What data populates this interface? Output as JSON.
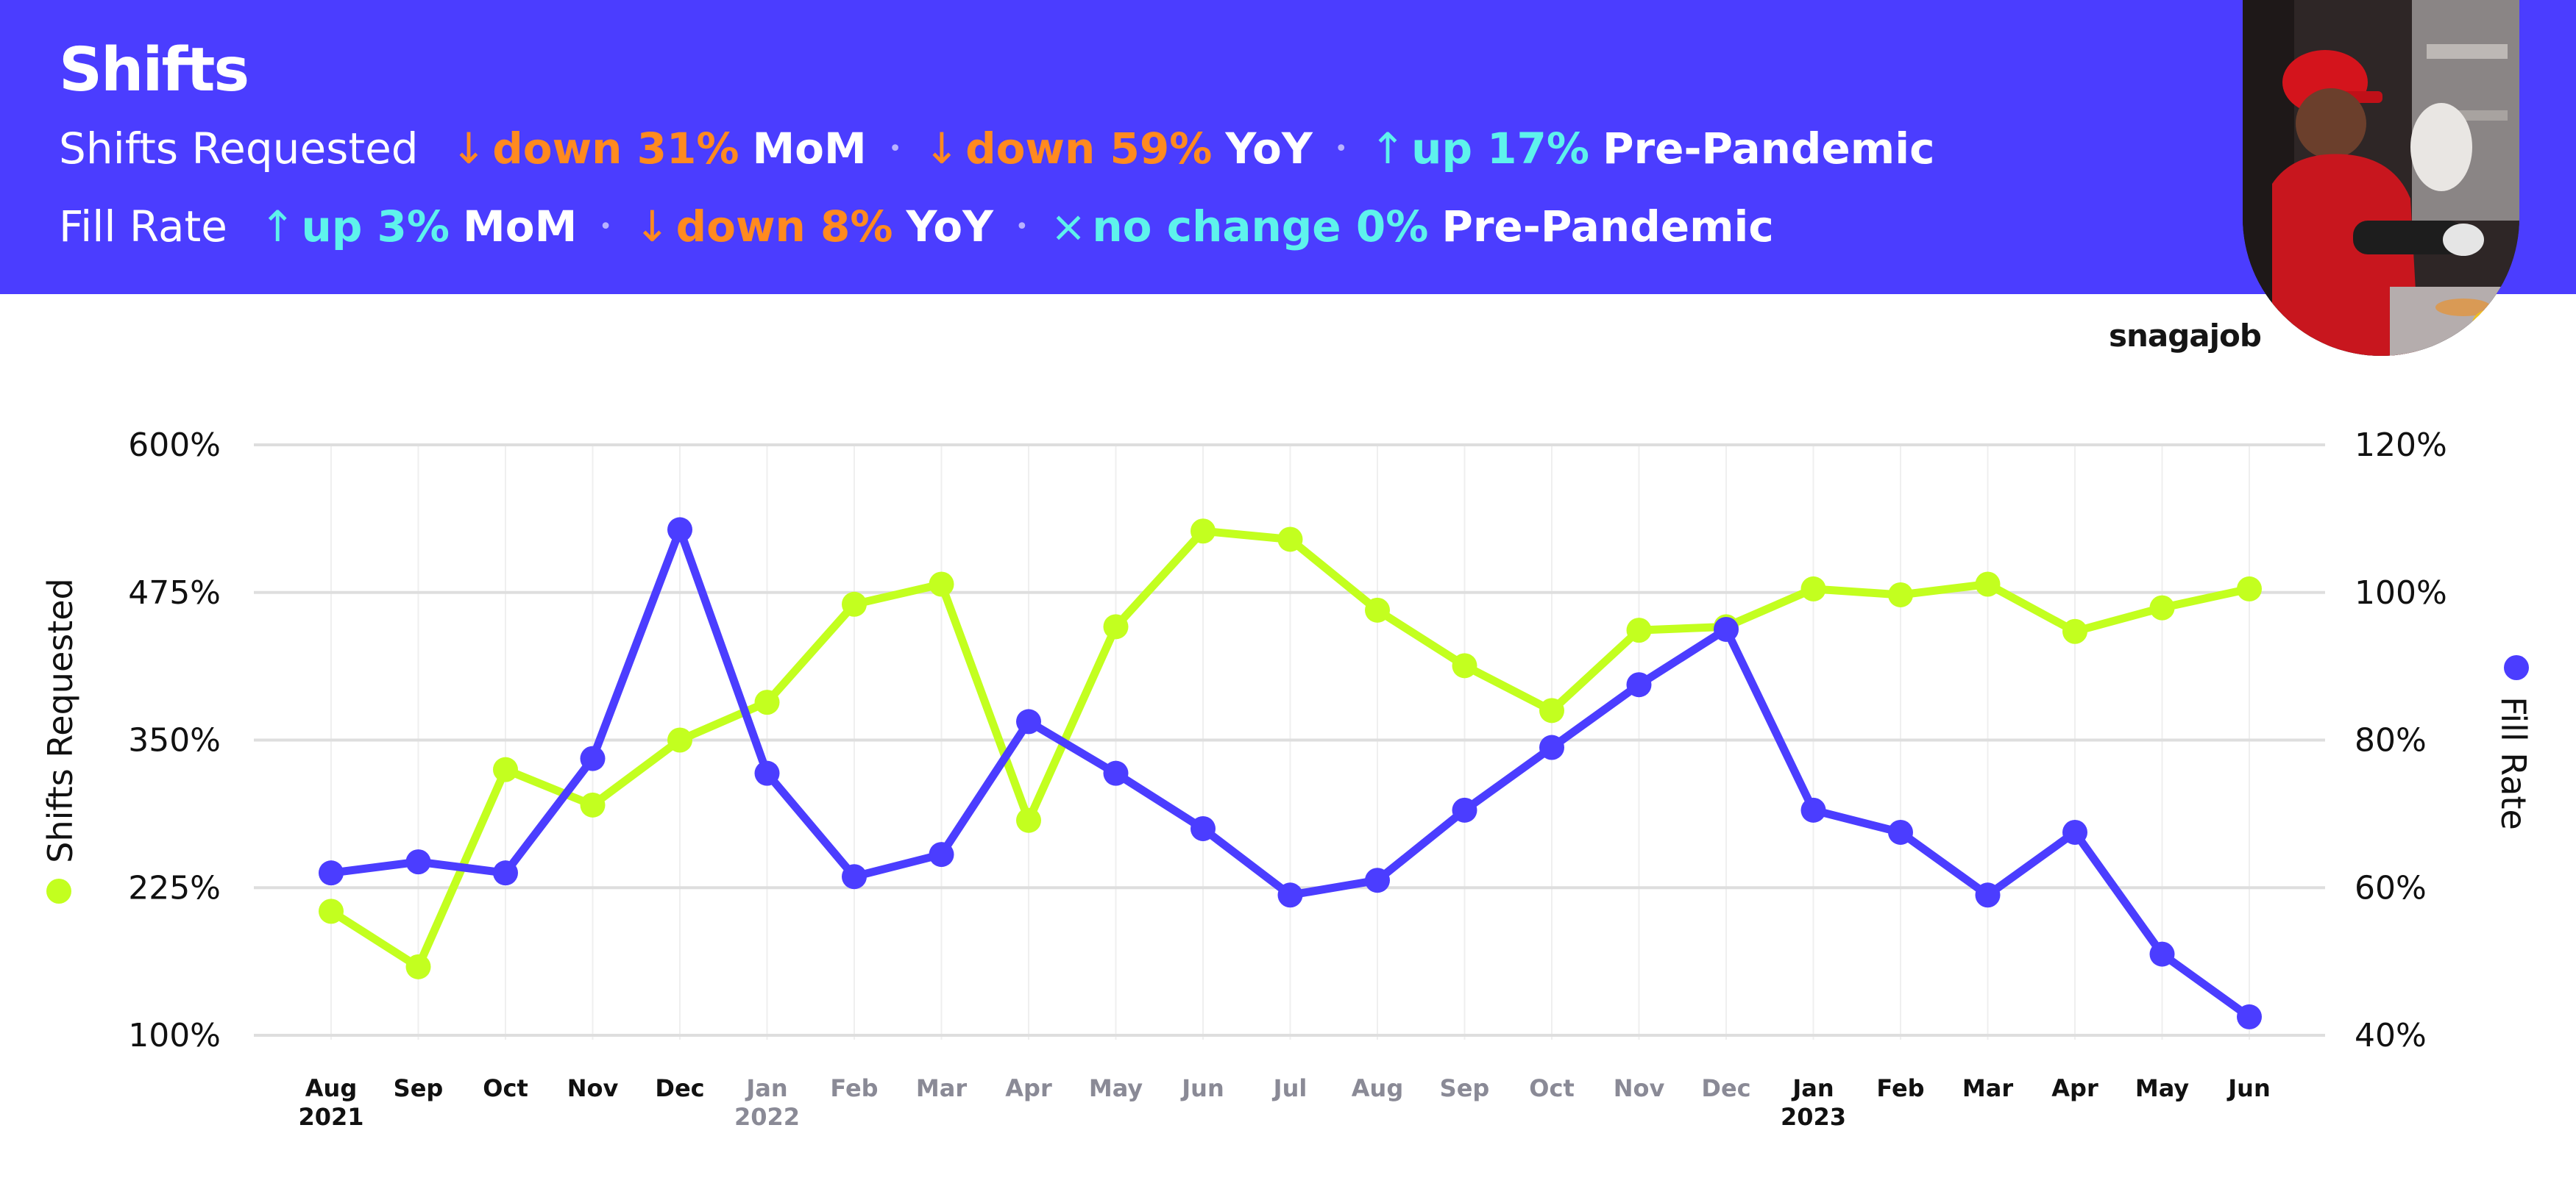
{
  "header": {
    "title": "Shifts",
    "rows": [
      {
        "label": "Shifts Requested",
        "stats": [
          {
            "arrow": "↓",
            "direction": "down",
            "value": "down 31%",
            "period": "MoM"
          },
          {
            "arrow": "↓",
            "direction": "down",
            "value": "down 59%",
            "period": "YoY"
          },
          {
            "arrow": "↑",
            "direction": "up",
            "value": "up 17%",
            "period": "Pre-Pandemic"
          }
        ]
      },
      {
        "label": "Fill Rate",
        "stats": [
          {
            "arrow": "↑",
            "direction": "up",
            "value": "up 3%",
            "period": "MoM"
          },
          {
            "arrow": "↓",
            "direction": "down",
            "value": "down 8%",
            "period": "YoY"
          },
          {
            "arrow": "×",
            "direction": "up",
            "value": "no change 0%",
            "period": "Pre-Pandemic"
          }
        ]
      }
    ],
    "separator": "•",
    "brand": "snagajob"
  },
  "colors": {
    "banner": "#4b3dff",
    "down": "#ff8a1f",
    "up": "#5ef2ec",
    "shifts_series": "#c3ff1f",
    "fill_series": "#4b3dff"
  },
  "chart_data": {
    "type": "line",
    "x_labels": [
      {
        "month": "Aug",
        "year": "2021",
        "bold": true
      },
      {
        "month": "Sep",
        "year": "",
        "bold": true
      },
      {
        "month": "Oct",
        "year": "",
        "bold": true
      },
      {
        "month": "Nov",
        "year": "",
        "bold": true
      },
      {
        "month": "Dec",
        "year": "",
        "bold": true
      },
      {
        "month": "Jan",
        "year": "2022",
        "bold": false
      },
      {
        "month": "Feb",
        "year": "",
        "bold": false
      },
      {
        "month": "Mar",
        "year": "",
        "bold": false
      },
      {
        "month": "Apr",
        "year": "",
        "bold": false
      },
      {
        "month": "May",
        "year": "",
        "bold": false
      },
      {
        "month": "Jun",
        "year": "",
        "bold": false
      },
      {
        "month": "Jul",
        "year": "",
        "bold": false
      },
      {
        "month": "Aug",
        "year": "",
        "bold": false
      },
      {
        "month": "Sep",
        "year": "",
        "bold": false
      },
      {
        "month": "Oct",
        "year": "",
        "bold": false
      },
      {
        "month": "Nov",
        "year": "",
        "bold": false
      },
      {
        "month": "Dec",
        "year": "",
        "bold": false
      },
      {
        "month": "Jan",
        "year": "2023",
        "bold": true
      },
      {
        "month": "Feb",
        "year": "",
        "bold": true
      },
      {
        "month": "Mar",
        "year": "",
        "bold": true
      },
      {
        "month": "Apr",
        "year": "",
        "bold": true
      },
      {
        "month": "May",
        "year": "",
        "bold": true
      },
      {
        "month": "Jun",
        "year": "",
        "bold": true
      }
    ],
    "left_axis": {
      "label": "Shifts Requested",
      "ticks": [
        "600%",
        "475%",
        "350%",
        "225%",
        "100%"
      ],
      "range": [
        100,
        600
      ]
    },
    "right_axis": {
      "label": "Fill Rate",
      "ticks": [
        "120%",
        "100%",
        "80%",
        "60%",
        "40%"
      ],
      "range": [
        40,
        120
      ]
    },
    "series": [
      {
        "name": "Shifts Requested",
        "axis": "left",
        "values": [
          205,
          158,
          325,
          295,
          350,
          382,
          465,
          482,
          282,
          446,
          527,
          520,
          460,
          413,
          375,
          443,
          446,
          478,
          473,
          482,
          442,
          462,
          478
        ]
      },
      {
        "name": "Fill Rate",
        "axis": "right",
        "values": [
          62,
          63.5,
          62,
          77.5,
          108.5,
          75.5,
          61.5,
          64.5,
          82.5,
          75.5,
          68,
          59,
          61,
          70.5,
          79,
          87.5,
          95,
          70.5,
          67.5,
          59,
          67.5,
          51,
          42.5
        ]
      }
    ],
    "grid": true
  }
}
